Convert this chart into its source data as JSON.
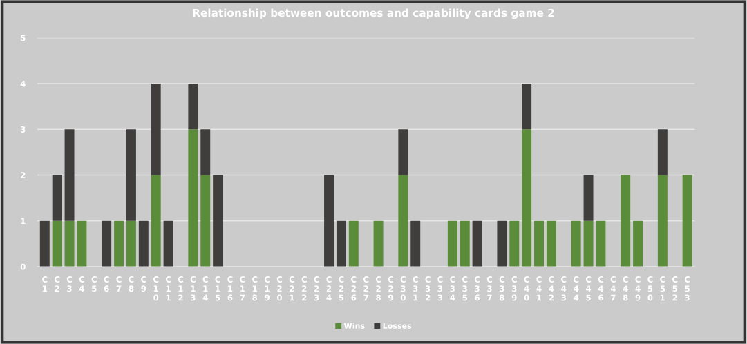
{
  "chart_data": {
    "type": "bar",
    "title": "Relationship between outcomes and capability cards game 2",
    "stacked": true,
    "categories": [
      "C1",
      "C2",
      "C3",
      "C4",
      "C5",
      "C6",
      "C7",
      "C8",
      "C9",
      "C10",
      "C11",
      "C12",
      "C13",
      "C14",
      "C15",
      "C16",
      "C17",
      "C18",
      "C19",
      "C20",
      "C21",
      "C22",
      "C23",
      "C24",
      "C25",
      "C26",
      "C27",
      "C28",
      "C29",
      "C30",
      "C31",
      "C32",
      "C33",
      "C34",
      "C35",
      "C36",
      "C37",
      "C38",
      "C39",
      "C40",
      "C41",
      "C42",
      "C43",
      "C44",
      "C45",
      "C46",
      "C47",
      "C48",
      "C49",
      "C50",
      "C51",
      "C52",
      "C53"
    ],
    "series": [
      {
        "name": "Wins",
        "color": "#5b8c3a",
        "values": [
          0,
          1,
          1,
          1,
          0,
          0,
          1,
          1,
          0,
          2,
          0,
          0,
          3,
          2,
          0,
          0,
          0,
          0,
          0,
          0,
          0,
          0,
          0,
          0,
          0,
          1,
          0,
          1,
          0,
          2,
          0,
          0,
          0,
          1,
          1,
          0,
          0,
          0,
          1,
          3,
          1,
          1,
          0,
          1,
          1,
          1,
          0,
          2,
          1,
          0,
          2,
          0,
          2
        ]
      },
      {
        "name": "Losses",
        "color": "#403d3d",
        "values": [
          1,
          1,
          2,
          0,
          0,
          1,
          0,
          2,
          1,
          2,
          1,
          0,
          1,
          1,
          2,
          0,
          0,
          0,
          0,
          0,
          0,
          0,
          0,
          2,
          1,
          0,
          0,
          0,
          0,
          1,
          1,
          0,
          0,
          0,
          0,
          1,
          0,
          1,
          0,
          1,
          0,
          0,
          0,
          0,
          1,
          0,
          0,
          0,
          0,
          0,
          1,
          0,
          0
        ]
      }
    ],
    "ylim": [
      0,
      5
    ],
    "yticks": [
      0,
      1,
      2,
      3,
      4,
      5
    ],
    "grid": "y",
    "legend": "bottom"
  }
}
